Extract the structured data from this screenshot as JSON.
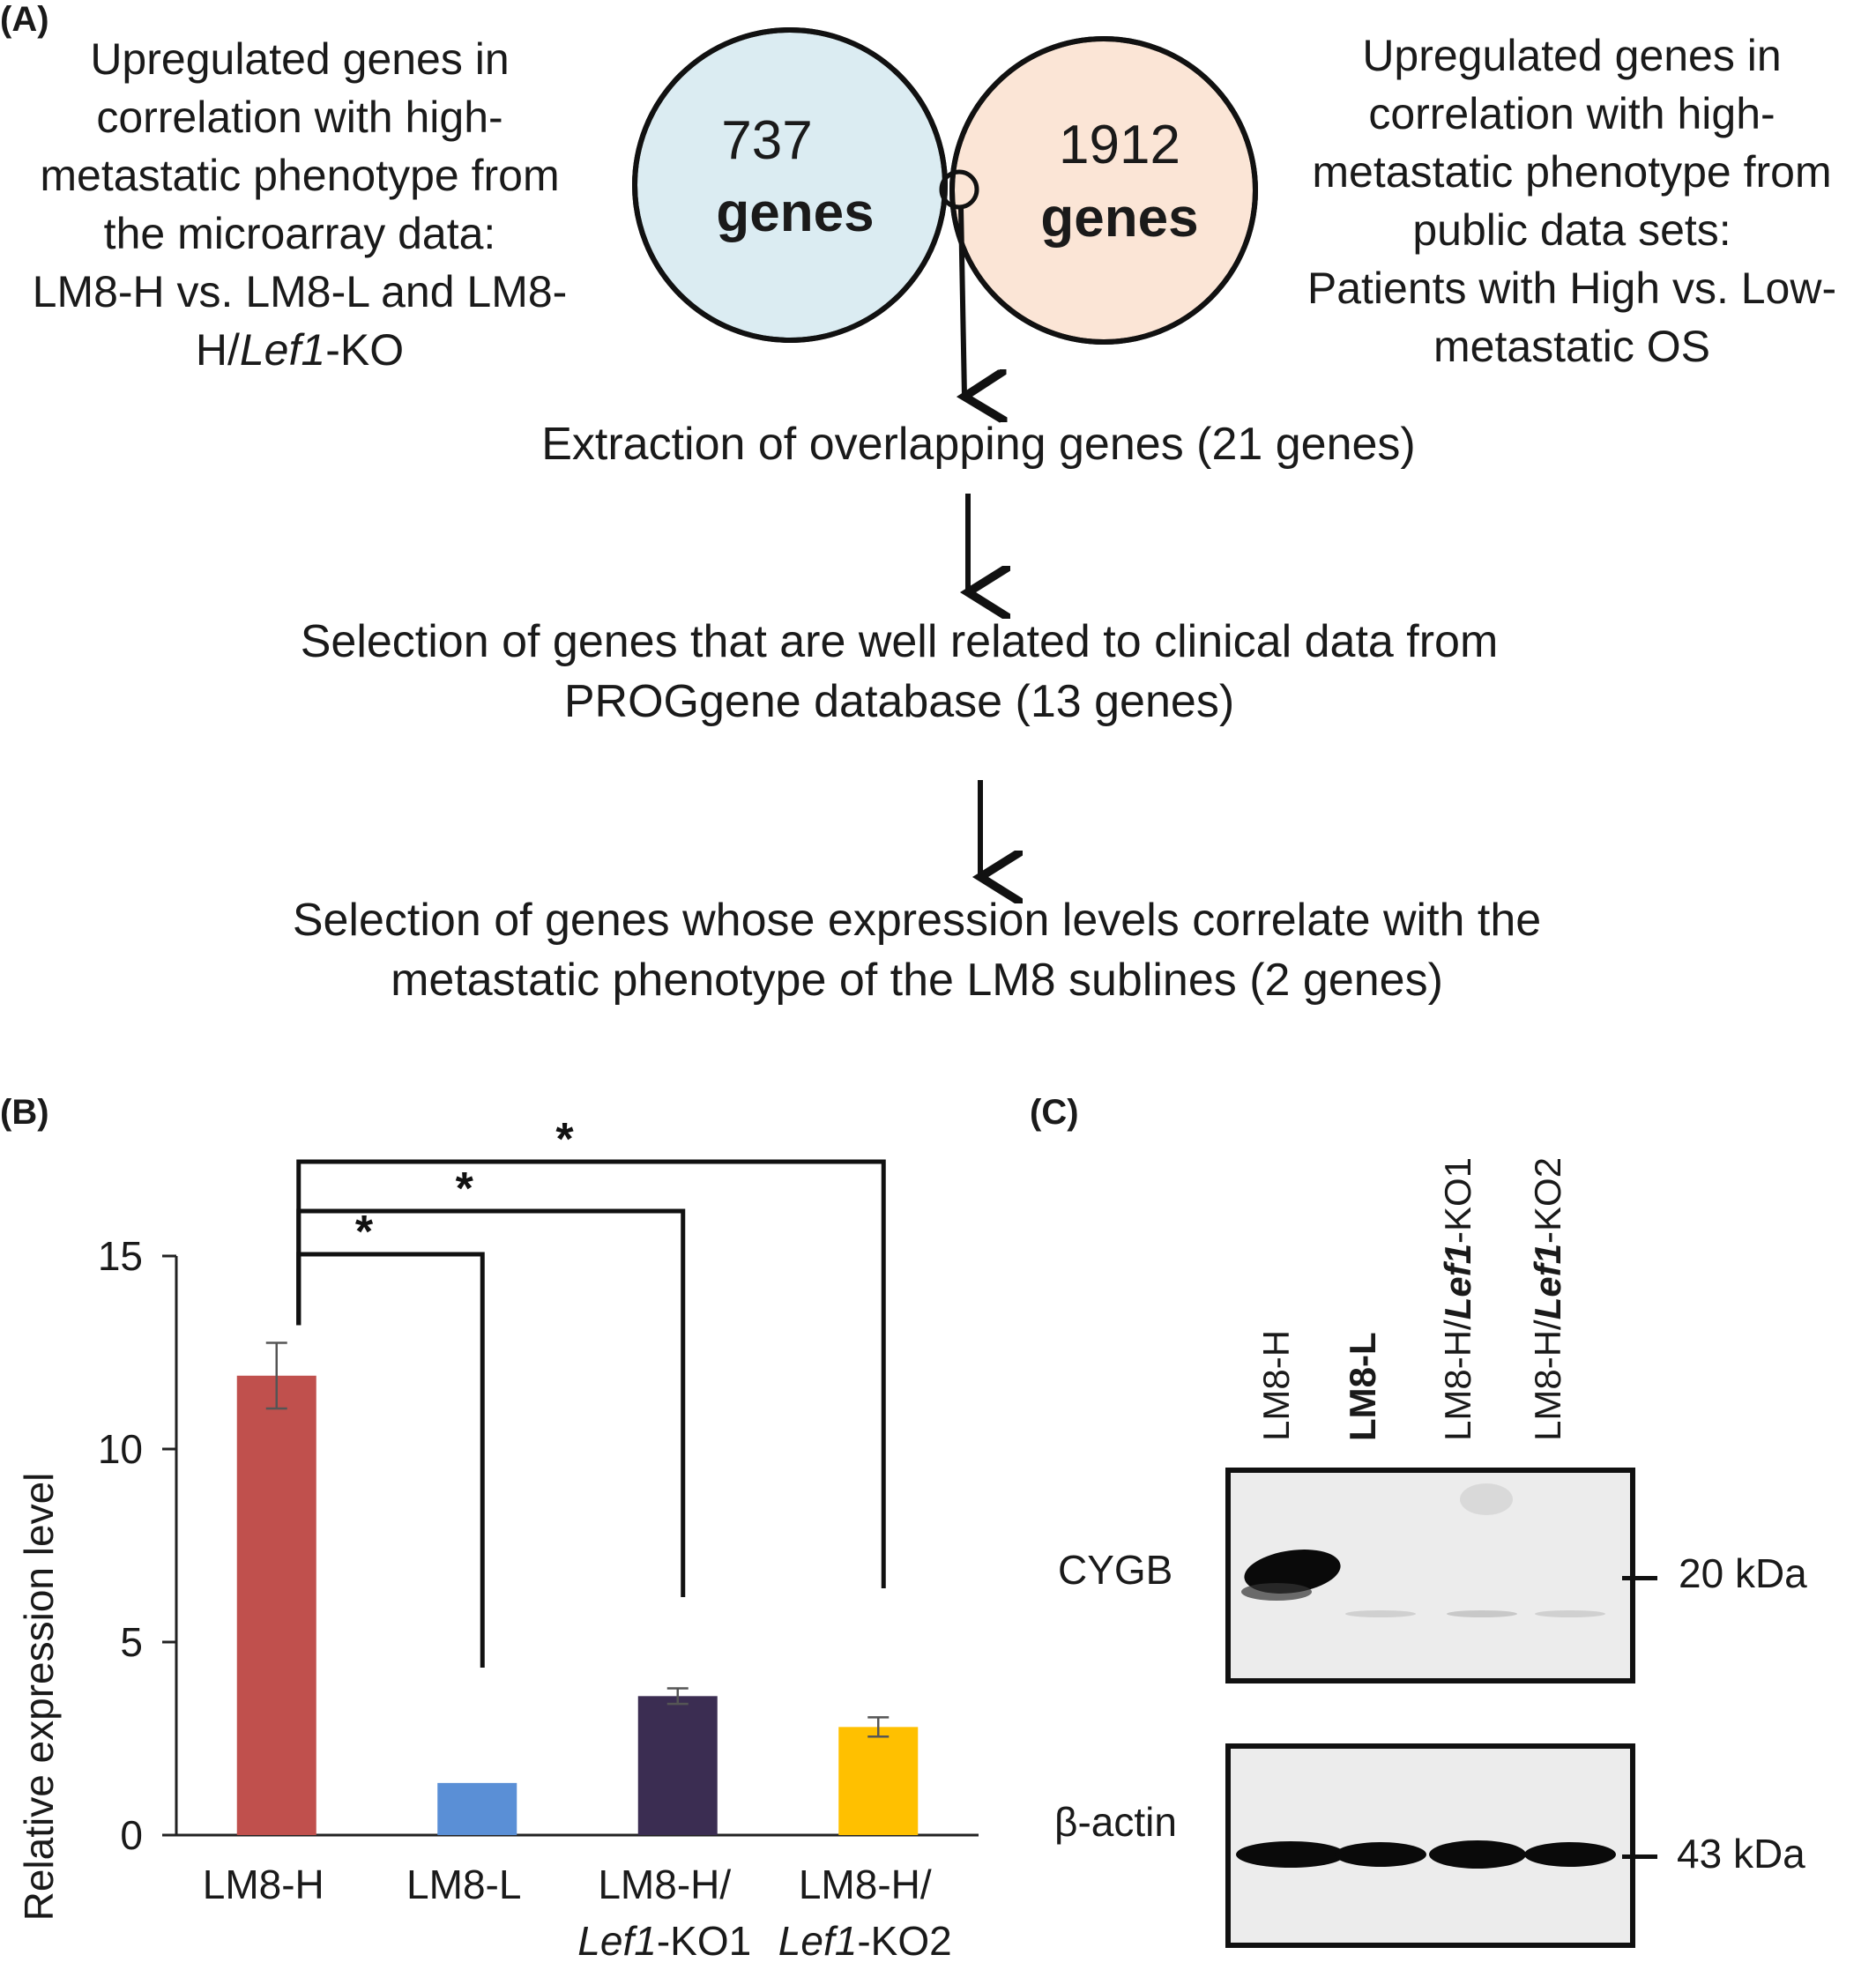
{
  "panel_a": {
    "label": "(A)",
    "left_text": [
      "Upregulated genes in",
      "correlation with high-",
      "metastatic phenotype from",
      "the microarray data:",
      "LM8-H vs. LM8-L and LM8-"
    ],
    "left_text_last_prefix": "H/",
    "left_text_last_italic": "Lef1",
    "left_text_last_suffix": "-KO",
    "right_text": [
      "Upregulated genes in",
      "correlation with high-",
      "metastatic phenotype from",
      "public data sets:",
      "Patients with High vs. Low-",
      "metastatic OS"
    ],
    "venn": {
      "left_count": "737",
      "left_unit": "genes",
      "right_count": "1912",
      "right_unit": "genes",
      "left_color": "#dbecf2",
      "right_color": "#fbe5d6"
    },
    "steps": [
      [
        "Extraction of overlapping genes (21 genes)"
      ],
      [
        "Selection of genes that are well related to clinical data from",
        "PROGgene database (13 genes)"
      ],
      [
        "Selection of genes whose expression levels correlate with the",
        "metastatic phenotype of the LM8 sublines (2 genes)"
      ]
    ]
  },
  "panel_b": {
    "label": "(B)",
    "significance_marker": "*"
  },
  "chart_data": {
    "type": "bar",
    "ylabel": "Relative expression level",
    "ylim": [
      0,
      15
    ],
    "yticks": [
      0,
      5,
      10,
      15
    ],
    "categories": [
      {
        "line1": "LM8-H",
        "line2_italic": "",
        "line2_suffix": ""
      },
      {
        "line1": "LM8-L",
        "line2_italic": "",
        "line2_suffix": ""
      },
      {
        "line1": "LM8-H/",
        "line2_italic": "Lef1",
        "line2_suffix": "-KO1"
      },
      {
        "line1": "LM8-H/",
        "line2_italic": "Lef1",
        "line2_suffix": "-KO2"
      }
    ],
    "values": [
      11.9,
      1.35,
      3.6,
      2.8
    ],
    "errors": [
      0.85,
      0,
      0.2,
      0.25
    ],
    "colors": [
      "#c0504d",
      "#5a8fd6",
      "#3b2d52",
      "#ffc000"
    ],
    "comparisons": [
      {
        "from": 0,
        "to": 1,
        "label": "*"
      },
      {
        "from": 0,
        "to": 2,
        "label": "*"
      },
      {
        "from": 0,
        "to": 3,
        "label": "*"
      }
    ]
  },
  "panel_c": {
    "label": "(C)",
    "lanes": [
      {
        "prefix": "LM8-H",
        "italic": "",
        "suffix": "",
        "bold": false
      },
      {
        "prefix": "LM8-L",
        "italic": "",
        "suffix": "",
        "bold": true
      },
      {
        "prefix": "LM8-H/",
        "italic": "Lef1",
        "suffix": "-KO1",
        "bold": false
      },
      {
        "prefix": "LM8-H/",
        "italic": "Lef1",
        "suffix": "-KO2",
        "bold": false
      }
    ],
    "blot1_label": "CYGB",
    "blot1_marker": "20 kDa",
    "blot2_label": "β-actin",
    "blot2_marker": "43 kDa"
  }
}
